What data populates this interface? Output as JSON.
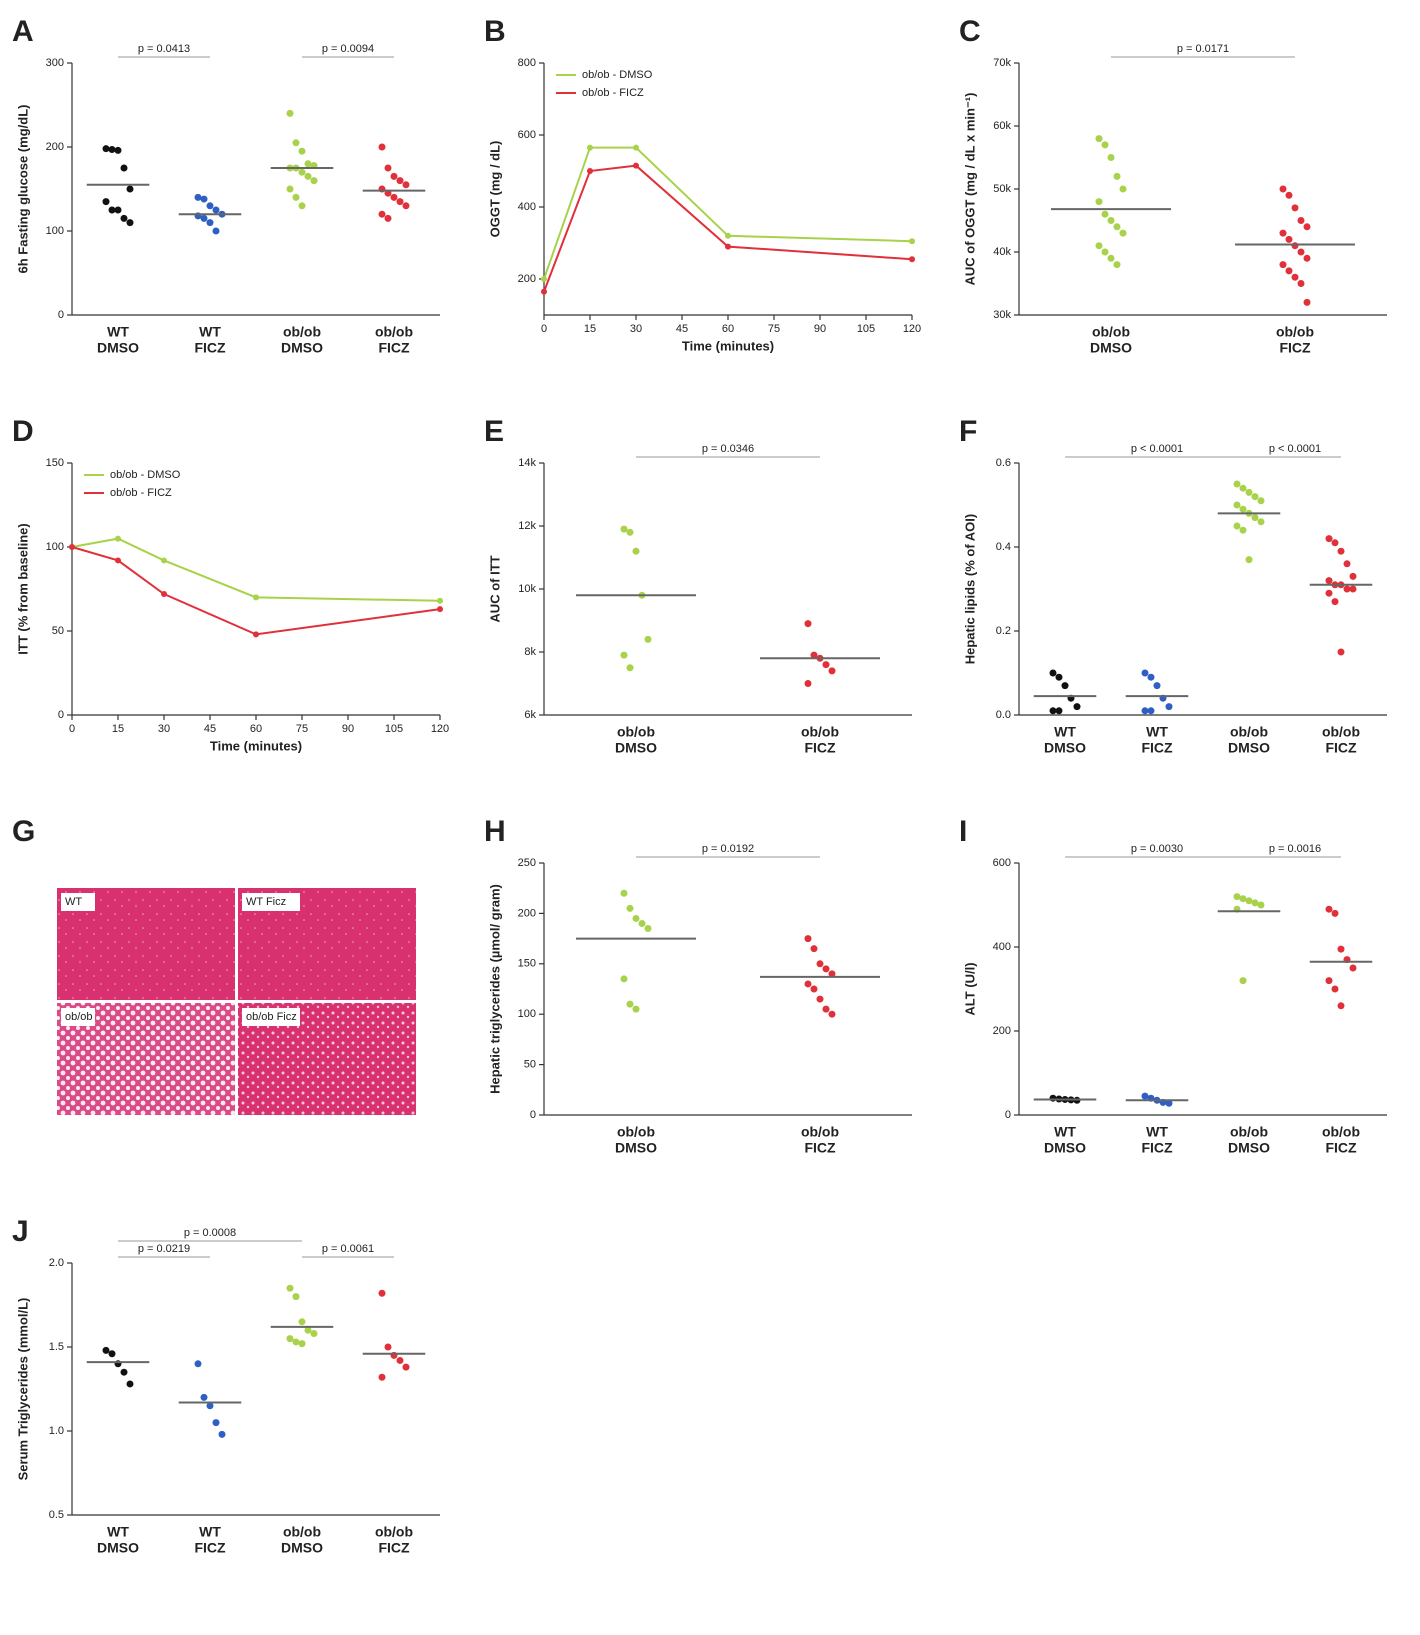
{
  "chart_data": [
    {
      "type": "dot",
      "panel": "A",
      "ylabel": "6h Fasting glucose (mg/dL)",
      "categories": [
        [
          "WT",
          "DMSO"
        ],
        [
          "WT",
          "FICZ"
        ],
        [
          "ob/ob",
          "DMSO"
        ],
        [
          "ob/ob",
          "FICZ"
        ]
      ],
      "colors": [
        "#111111",
        "#2e5fc4",
        "#a8d24a",
        "#e0303a"
      ],
      "points": [
        [
          198,
          197,
          196,
          175,
          150,
          135,
          125,
          125,
          115,
          110
        ],
        [
          140,
          138,
          130,
          125,
          120,
          118,
          115,
          110,
          100
        ],
        [
          240,
          205,
          195,
          180,
          178,
          175,
          175,
          170,
          165,
          160,
          150,
          140,
          130
        ],
        [
          200,
          175,
          165,
          160,
          155,
          150,
          145,
          140,
          135,
          130,
          120,
          115
        ]
      ],
      "means": [
        155,
        120,
        175,
        148
      ],
      "comparisons": [
        {
          "label": "p = 0.0413",
          "between": [
            0,
            1
          ]
        },
        {
          "label": "p = 0.0094",
          "between": [
            2,
            3
          ]
        }
      ],
      "ylim": [
        0,
        300
      ],
      "yticks": [
        0,
        100,
        200,
        300
      ]
    },
    {
      "type": "line",
      "panel": "B",
      "ylabel": "OGGT (mg / dL)",
      "xlabel": "Time (minutes)",
      "x": [
        0,
        15,
        30,
        60,
        120
      ],
      "series": [
        {
          "name": "ob/ob - DMSO",
          "color": "#a8d24a",
          "values": [
            200,
            565,
            565,
            320,
            305
          ]
        },
        {
          "name": "ob/ob - FICZ",
          "color": "#e0303a",
          "values": [
            165,
            500,
            515,
            290,
            255
          ]
        }
      ],
      "xlim": [
        0,
        120
      ],
      "xticks": [
        0,
        15,
        30,
        45,
        60,
        75,
        90,
        105,
        120
      ],
      "ylim": [
        100,
        800
      ],
      "yticks": [
        200,
        400,
        600,
        800
      ],
      "legend": "upper-left"
    },
    {
      "type": "dot",
      "panel": "C",
      "ylabel": "AUC of OGGT (mg / dL x min⁻¹)",
      "categories": [
        [
          "ob/ob",
          "DMSO"
        ],
        [
          "ob/ob",
          "FICZ"
        ]
      ],
      "colors": [
        "#a8d24a",
        "#e0303a"
      ],
      "points": [
        [
          58000,
          57000,
          55000,
          52000,
          50000,
          48000,
          46000,
          45000,
          44000,
          43000,
          41000,
          40000,
          39000,
          38000
        ],
        [
          50000,
          49000,
          47000,
          45000,
          44000,
          43000,
          42000,
          41000,
          40000,
          39000,
          38000,
          37000,
          36000,
          35000,
          32000
        ]
      ],
      "means": [
        46800,
        41200
      ],
      "comparisons": [
        {
          "label": "p = 0.0171",
          "between": [
            0,
            1
          ]
        }
      ],
      "ylim": [
        30000,
        70000
      ],
      "yticks": [
        {
          "value": 30000,
          "label": "30k"
        },
        {
          "value": 40000,
          "label": "40k"
        },
        {
          "value": 50000,
          "label": "50k"
        },
        {
          "value": 60000,
          "label": "60k"
        },
        {
          "value": 70000,
          "label": "70k"
        }
      ]
    },
    {
      "type": "line",
      "panel": "D",
      "ylabel": "ITT (% from baseline)",
      "xlabel": "Time (minutes)",
      "x": [
        0,
        15,
        30,
        60,
        120
      ],
      "series": [
        {
          "name": "ob/ob - DMSO",
          "color": "#a8d24a",
          "values": [
            100,
            105,
            92,
            70,
            68
          ]
        },
        {
          "name": "ob/ob - FICZ",
          "color": "#e0303a",
          "values": [
            100,
            92,
            72,
            48,
            63
          ]
        }
      ],
      "xlim": [
        0,
        120
      ],
      "xticks": [
        0,
        15,
        30,
        45,
        60,
        75,
        90,
        105,
        120
      ],
      "ylim": [
        0,
        150
      ],
      "yticks": [
        0,
        50,
        100,
        150
      ],
      "legend": "upper-left"
    },
    {
      "type": "dot",
      "panel": "E",
      "ylabel": "AUC of ITT",
      "categories": [
        [
          "ob/ob",
          "DMSO"
        ],
        [
          "ob/ob",
          "FICZ"
        ]
      ],
      "colors": [
        "#a8d24a",
        "#e0303a"
      ],
      "points": [
        [
          11900,
          11800,
          11200,
          9800,
          8400,
          7900,
          7500
        ],
        [
          8900,
          7900,
          7800,
          7600,
          7400,
          7000
        ]
      ],
      "means": [
        9800,
        7800
      ],
      "comparisons": [
        {
          "label": "p = 0.0346",
          "between": [
            0,
            1
          ]
        }
      ],
      "ylim": [
        6000,
        14000
      ],
      "yticks": [
        {
          "value": 6000,
          "label": "6k"
        },
        {
          "value": 8000,
          "label": "8k"
        },
        {
          "value": 10000,
          "label": "10k"
        },
        {
          "value": 12000,
          "label": "12k"
        },
        {
          "value": 14000,
          "label": "14k"
        }
      ]
    },
    {
      "type": "dot",
      "panel": "F",
      "ylabel": "Hepatic lipids (% of AOI)",
      "categories": [
        [
          "WT",
          "DMSO"
        ],
        [
          "WT",
          "FICZ"
        ],
        [
          "ob/ob",
          "DMSO"
        ],
        [
          "ob/ob",
          "FICZ"
        ]
      ],
      "colors": [
        "#111111",
        "#2e5fc4",
        "#a8d24a",
        "#e0303a"
      ],
      "points": [
        [
          0.1,
          0.09,
          0.07,
          0.04,
          0.02,
          0.01,
          0.01
        ],
        [
          0.1,
          0.09,
          0.07,
          0.04,
          0.02,
          0.01,
          0.01
        ],
        [
          0.55,
          0.54,
          0.53,
          0.52,
          0.51,
          0.5,
          0.49,
          0.48,
          0.47,
          0.46,
          0.45,
          0.44,
          0.37
        ],
        [
          0.42,
          0.41,
          0.39,
          0.36,
          0.33,
          0.32,
          0.31,
          0.31,
          0.3,
          0.3,
          0.29,
          0.27,
          0.15
        ]
      ],
      "means": [
        0.045,
        0.045,
        0.48,
        0.31
      ],
      "comparisons": [
        {
          "label": "p < 0.0001",
          "between": [
            0,
            2
          ]
        },
        {
          "label": "p < 0.0001",
          "between": [
            2,
            3
          ]
        }
      ],
      "ylim": [
        0,
        0.6
      ],
      "yticks": [
        {
          "value": 0,
          "label": "0.0"
        },
        0.2,
        0.4,
        0.6
      ]
    },
    {
      "type": "image",
      "panel": "G",
      "tiles": [
        "WT",
        "WT Ficz",
        "ob/ob",
        "ob/ob Ficz"
      ]
    },
    {
      "type": "dot",
      "panel": "H",
      "ylabel": "Hepatic triglycerides (µmol/ gram)",
      "categories": [
        [
          "ob/ob",
          "DMSO"
        ],
        [
          "ob/ob",
          "FICZ"
        ]
      ],
      "colors": [
        "#a8d24a",
        "#e0303a"
      ],
      "points": [
        [
          220,
          205,
          195,
          190,
          185,
          135,
          110,
          105
        ],
        [
          175,
          165,
          150,
          145,
          140,
          130,
          125,
          115,
          105,
          100
        ]
      ],
      "means": [
        175,
        137
      ],
      "comparisons": [
        {
          "label": "p = 0.0192",
          "between": [
            0,
            1
          ]
        }
      ],
      "ylim": [
        0,
        250
      ],
      "yticks": [
        0,
        50,
        100,
        150,
        200,
        250
      ]
    },
    {
      "type": "dot",
      "panel": "I",
      "ylabel": "ALT (U/l)",
      "categories": [
        [
          "WT",
          "DMSO"
        ],
        [
          "WT",
          "FICZ"
        ],
        [
          "ob/ob",
          "DMSO"
        ],
        [
          "ob/ob",
          "FICZ"
        ]
      ],
      "colors": [
        "#111111",
        "#2e5fc4",
        "#a8d24a",
        "#e0303a"
      ],
      "points": [
        [
          40,
          38,
          37,
          36,
          35
        ],
        [
          45,
          40,
          35,
          30,
          28
        ],
        [
          520,
          515,
          510,
          505,
          500,
          490,
          320
        ],
        [
          490,
          480,
          395,
          370,
          350,
          320,
          300,
          260
        ]
      ],
      "means": [
        37,
        35,
        485,
        365
      ],
      "comparisons": [
        {
          "label": "p = 0.0030",
          "between": [
            0,
            2
          ]
        },
        {
          "label": "p = 0.0016",
          "between": [
            2,
            3
          ]
        }
      ],
      "ylim": [
        0,
        600
      ],
      "yticks": [
        0,
        200,
        400,
        600
      ]
    },
    {
      "type": "dot",
      "panel": "J",
      "ylabel": "Serum Triglycerides (mmol/L)",
      "categories": [
        [
          "WT",
          "DMSO"
        ],
        [
          "WT",
          "FICZ"
        ],
        [
          "ob/ob",
          "DMSO"
        ],
        [
          "ob/ob",
          "FICZ"
        ]
      ],
      "colors": [
        "#111111",
        "#2e5fc4",
        "#a8d24a",
        "#e0303a"
      ],
      "points": [
        [
          1.48,
          1.46,
          1.4,
          1.35,
          1.28
        ],
        [
          1.4,
          1.2,
          1.15,
          1.05,
          0.98
        ],
        [
          1.85,
          1.8,
          1.65,
          1.6,
          1.58,
          1.55,
          1.53,
          1.52
        ],
        [
          1.82,
          1.5,
          1.45,
          1.42,
          1.38,
          1.32
        ]
      ],
      "means": [
        1.41,
        1.17,
        1.62,
        1.46
      ],
      "comparisons": [
        {
          "label": "p = 0.0219",
          "between": [
            0,
            1
          ]
        },
        {
          "label": "p = 0.0008",
          "between": [
            0,
            2
          ]
        },
        {
          "label": "p = 0.0061",
          "between": [
            2,
            3
          ]
        }
      ],
      "ylim": [
        0.5,
        2.0
      ],
      "yticks": [
        0.5,
        {
          "value": 1,
          "label": "1.0"
        },
        1.5,
        {
          "value": 2,
          "label": "2.0"
        }
      ]
    }
  ]
}
